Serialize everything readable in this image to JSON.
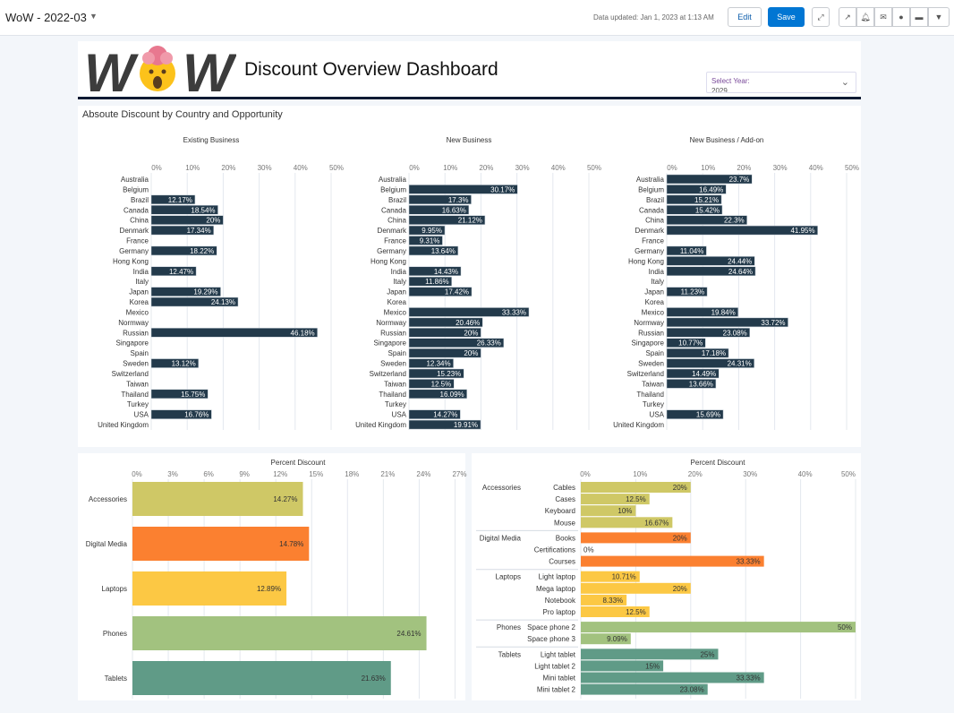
{
  "topbar": {
    "title": "WoW - 2022-03",
    "updated": "Data updated: Jan 1, 2023 at 1:13 AM",
    "edit": "Edit",
    "save": "Save"
  },
  "header": {
    "logo_text": "WOW",
    "title": "Discount Overview Dashboard",
    "select_label": "Select Year:",
    "select_value": "2029"
  },
  "colors": {
    "bar_dark": "#233a4b",
    "accessories": "#cfc866",
    "digital_media": "#fb8030",
    "laptops": "#fcc844",
    "phones": "#a2c27f",
    "tablets": "#609b87",
    "save_button": "#0176d3"
  },
  "chart_data": [
    {
      "type": "bar",
      "orientation": "horizontal",
      "title": "Absoute Discount by Country and Opportunity",
      "subtitle": "Existing Business",
      "xlim": [
        0,
        50
      ],
      "ticks": [
        "0%",
        "10%",
        "20%",
        "30%",
        "40%",
        "50%"
      ],
      "categories": [
        "Australia",
        "Belgium",
        "Brazil",
        "Canada",
        "China",
        "Denmark",
        "France",
        "Germany",
        "Hong Kong",
        "India",
        "Italy",
        "Japan",
        "Korea",
        "Mexico",
        "Normway",
        "Russian",
        "Singapore",
        "Spain",
        "Sweden",
        "Switzerland",
        "Taiwan",
        "Thailand",
        "Turkey",
        "USA",
        "United Kingdom"
      ],
      "values": [
        null,
        null,
        12.17,
        18.54,
        20,
        17.34,
        null,
        18.22,
        null,
        12.47,
        null,
        19.29,
        24.13,
        null,
        null,
        46.18,
        null,
        null,
        13.12,
        null,
        null,
        15.75,
        null,
        16.76,
        null
      ]
    },
    {
      "type": "bar",
      "orientation": "horizontal",
      "subtitle": "New Business",
      "xlim": [
        0,
        50
      ],
      "ticks": [
        "0%",
        "10%",
        "20%",
        "30%",
        "40%",
        "50%"
      ],
      "categories": [
        "Australia",
        "Belgium",
        "Brazil",
        "Canada",
        "China",
        "Denmark",
        "France",
        "Germany",
        "Hong Kong",
        "India",
        "Italy",
        "Japan",
        "Korea",
        "Mexico",
        "Normway",
        "Russian",
        "Singapore",
        "Spain",
        "Sweden",
        "Switzerland",
        "Taiwan",
        "Thailand",
        "Turkey",
        "USA",
        "United Kingdom"
      ],
      "values": [
        null,
        30.17,
        17.3,
        16.63,
        21.12,
        9.95,
        9.31,
        13.64,
        null,
        14.43,
        11.86,
        17.42,
        null,
        33.33,
        20.46,
        20,
        26.33,
        20,
        12.34,
        15.23,
        12.5,
        16.09,
        null,
        14.27,
        19.91
      ]
    },
    {
      "type": "bar",
      "orientation": "horizontal",
      "subtitle": "New Business / Add-on",
      "xlim": [
        0,
        50
      ],
      "ticks": [
        "0%",
        "10%",
        "20%",
        "30%",
        "40%",
        "50%"
      ],
      "categories": [
        "Australia",
        "Belgium",
        "Brazil",
        "Canada",
        "China",
        "Denmark",
        "France",
        "Germany",
        "Hong Kong",
        "India",
        "Italy",
        "Japan",
        "Korea",
        "Mexico",
        "Normway",
        "Russian",
        "Singapore",
        "Spain",
        "Sweden",
        "Switzerland",
        "Taiwan",
        "Thailand",
        "Turkey",
        "USA",
        "United Kingdom"
      ],
      "values": [
        23.7,
        16.49,
        15.21,
        15.42,
        22.3,
        41.95,
        null,
        11.04,
        24.44,
        24.64,
        null,
        11.23,
        null,
        19.84,
        33.72,
        23.08,
        10.77,
        17.18,
        24.31,
        14.49,
        13.66,
        null,
        null,
        15.69,
        null
      ]
    },
    {
      "type": "bar",
      "orientation": "horizontal",
      "xlabel": "Percent Discount",
      "xlim": [
        0,
        27
      ],
      "ticks": [
        "0%",
        "3%",
        "6%",
        "9%",
        "12%",
        "15%",
        "18%",
        "21%",
        "24%",
        "27%"
      ],
      "categories": [
        "Accessories",
        "Digital Media",
        "Laptops",
        "Phones",
        "Tablets"
      ],
      "values": [
        14.27,
        14.78,
        12.89,
        24.61,
        21.63
      ]
    },
    {
      "type": "bar",
      "orientation": "horizontal",
      "xlabel": "Percent Discount",
      "xlim": [
        0,
        50
      ],
      "ticks": [
        "0%",
        "10%",
        "20%",
        "30%",
        "40%",
        "50%"
      ],
      "groups": [
        {
          "name": "Accessories",
          "items": [
            [
              "Cables",
              20
            ],
            [
              "Cases",
              12.5
            ],
            [
              "Keyboard",
              10
            ],
            [
              "Mouse",
              16.67
            ]
          ]
        },
        {
          "name": "Digital Media",
          "items": [
            [
              "Books",
              20
            ],
            [
              "Certifications",
              0
            ],
            [
              "Courses",
              33.33
            ]
          ]
        },
        {
          "name": "Laptops",
          "items": [
            [
              "Light laptop",
              10.71
            ],
            [
              "Mega laptop",
              20
            ],
            [
              "Notebook",
              8.33
            ],
            [
              "Pro laptop",
              12.5
            ]
          ]
        },
        {
          "name": "Phones",
          "items": [
            [
              "Space phone 2",
              50
            ],
            [
              "Space phone 3",
              9.09
            ]
          ]
        },
        {
          "name": "Tablets",
          "items": [
            [
              "Light tablet",
              25
            ],
            [
              "Light tablet 2",
              15
            ],
            [
              "Mini tablet",
              33.33
            ],
            [
              "Mini tablet 2",
              23.08
            ]
          ]
        }
      ]
    }
  ]
}
